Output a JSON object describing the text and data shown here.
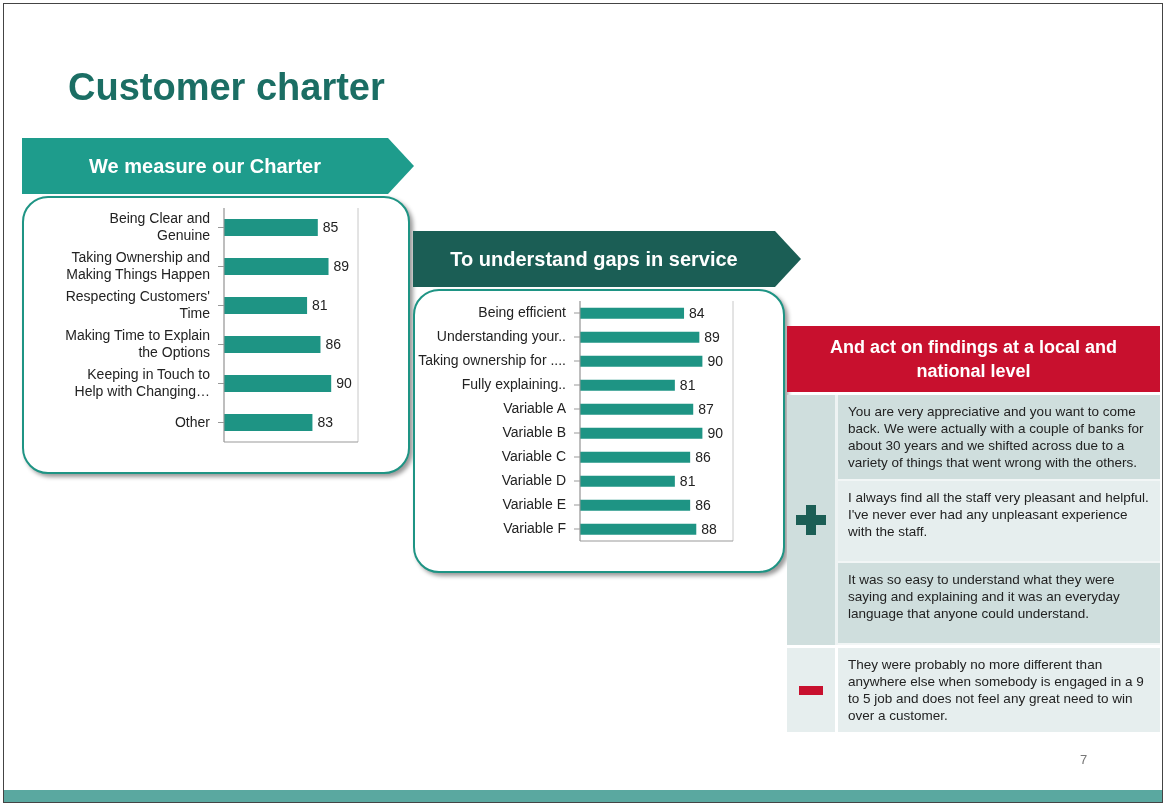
{
  "chart_data": [
    {
      "type": "bar",
      "title": "Customer charter",
      "subtitle": "We measure our Charter",
      "orientation": "horizontal",
      "categories": [
        "Being Clear and Genuine",
        "Taking Ownership and Making Things Happen",
        "Respecting Customers' Time",
        "Making Time to Explain the Options",
        "Keeping in Touch to Help with Changing…",
        "Other"
      ],
      "values": [
        85,
        89,
        81,
        86,
        90,
        83
      ],
      "color": "#1e9484",
      "data_labels": true,
      "xlim": [
        50,
        100
      ],
      "grid": "x",
      "tick_labels": "y"
    },
    {
      "type": "bar",
      "title": "To understand gaps in service",
      "orientation": "horizontal",
      "categories": [
        "Being efficient",
        "Understanding your..",
        "Taking ownership for ....",
        "Fully explaining..",
        "Variable A",
        "Variable B",
        "Variable C",
        "Variable D",
        "Variable E",
        "Variable F"
      ],
      "values": [
        84,
        89,
        90,
        81,
        87,
        90,
        86,
        81,
        86,
        88
      ],
      "color": "#1e9484",
      "data_labels": true,
      "xlim": [
        50,
        100
      ],
      "grid": "x",
      "tick_labels": "y"
    },
    {
      "type": "other",
      "title": "And act on findings at a local and national level",
      "annotations": [
        "You are very appreciative and you want to come back. We were actually with a couple of banks for about 30 years and we shifted across due to a variety of things that went wrong with the others.",
        "I always find all the staff very pleasant and helpful. I've never ever had any unpleasant experience with the staff.",
        "It was so easy to understand what they were saying and explaining and it was an everyday language that anyone could understand.",
        "They were probably no more different than anywhere else when somebody is engaged in a 9 to 5 job and does not feel any great need to win over a customer.",
        "7"
      ]
    }
  ]
}
